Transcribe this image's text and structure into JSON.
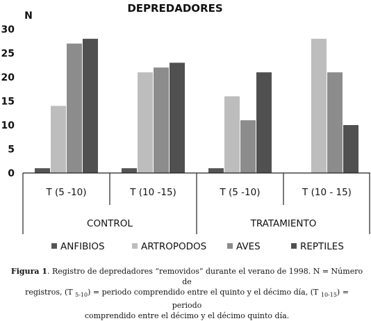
{
  "chart_data": {
    "type": "bar",
    "title": "DEPREDADORES",
    "ylabel": "N",
    "ylim": [
      0,
      30
    ],
    "yticks": [
      "0",
      "5",
      "10",
      "15",
      "20",
      "25",
      "30"
    ],
    "categories": [
      "T (5 -10)",
      "T (10 -15)",
      "T (5 -10)",
      "T (10 - 15)"
    ],
    "groups": [
      {
        "label": "CONTROL",
        "categories": [
          0,
          1
        ]
      },
      {
        "label": "TRATAMIENTO",
        "categories": [
          2,
          3
        ]
      }
    ],
    "series": [
      {
        "name": "ANFIBIOS",
        "color": "#555555",
        "values": [
          1,
          1,
          1,
          0
        ]
      },
      {
        "name": "ARTROPODOS",
        "color": "#bdbdbd",
        "values": [
          14,
          21,
          16,
          28
        ]
      },
      {
        "name": "AVES",
        "color": "#8c8c8c",
        "values": [
          27,
          22,
          11,
          21
        ]
      },
      {
        "name": "REPTILES",
        "color": "#505050",
        "values": [
          28,
          23,
          21,
          10
        ]
      }
    ],
    "legend_position": "bottom",
    "grid": false
  },
  "caption": {
    "label": "Figura 1",
    "line1": ". Registro de depredadores “removidos” durante el verano de 1998. N = Número de",
    "line2a": "registros, (T ",
    "sub1": "5-10",
    "line2b": ") = periodo comprendido entre el quinto y el décimo día, (T ",
    "sub2": "10-15",
    "line2c": ") = periodo",
    "line3": "comprendido entre el décimo y el décimo quinto día."
  }
}
